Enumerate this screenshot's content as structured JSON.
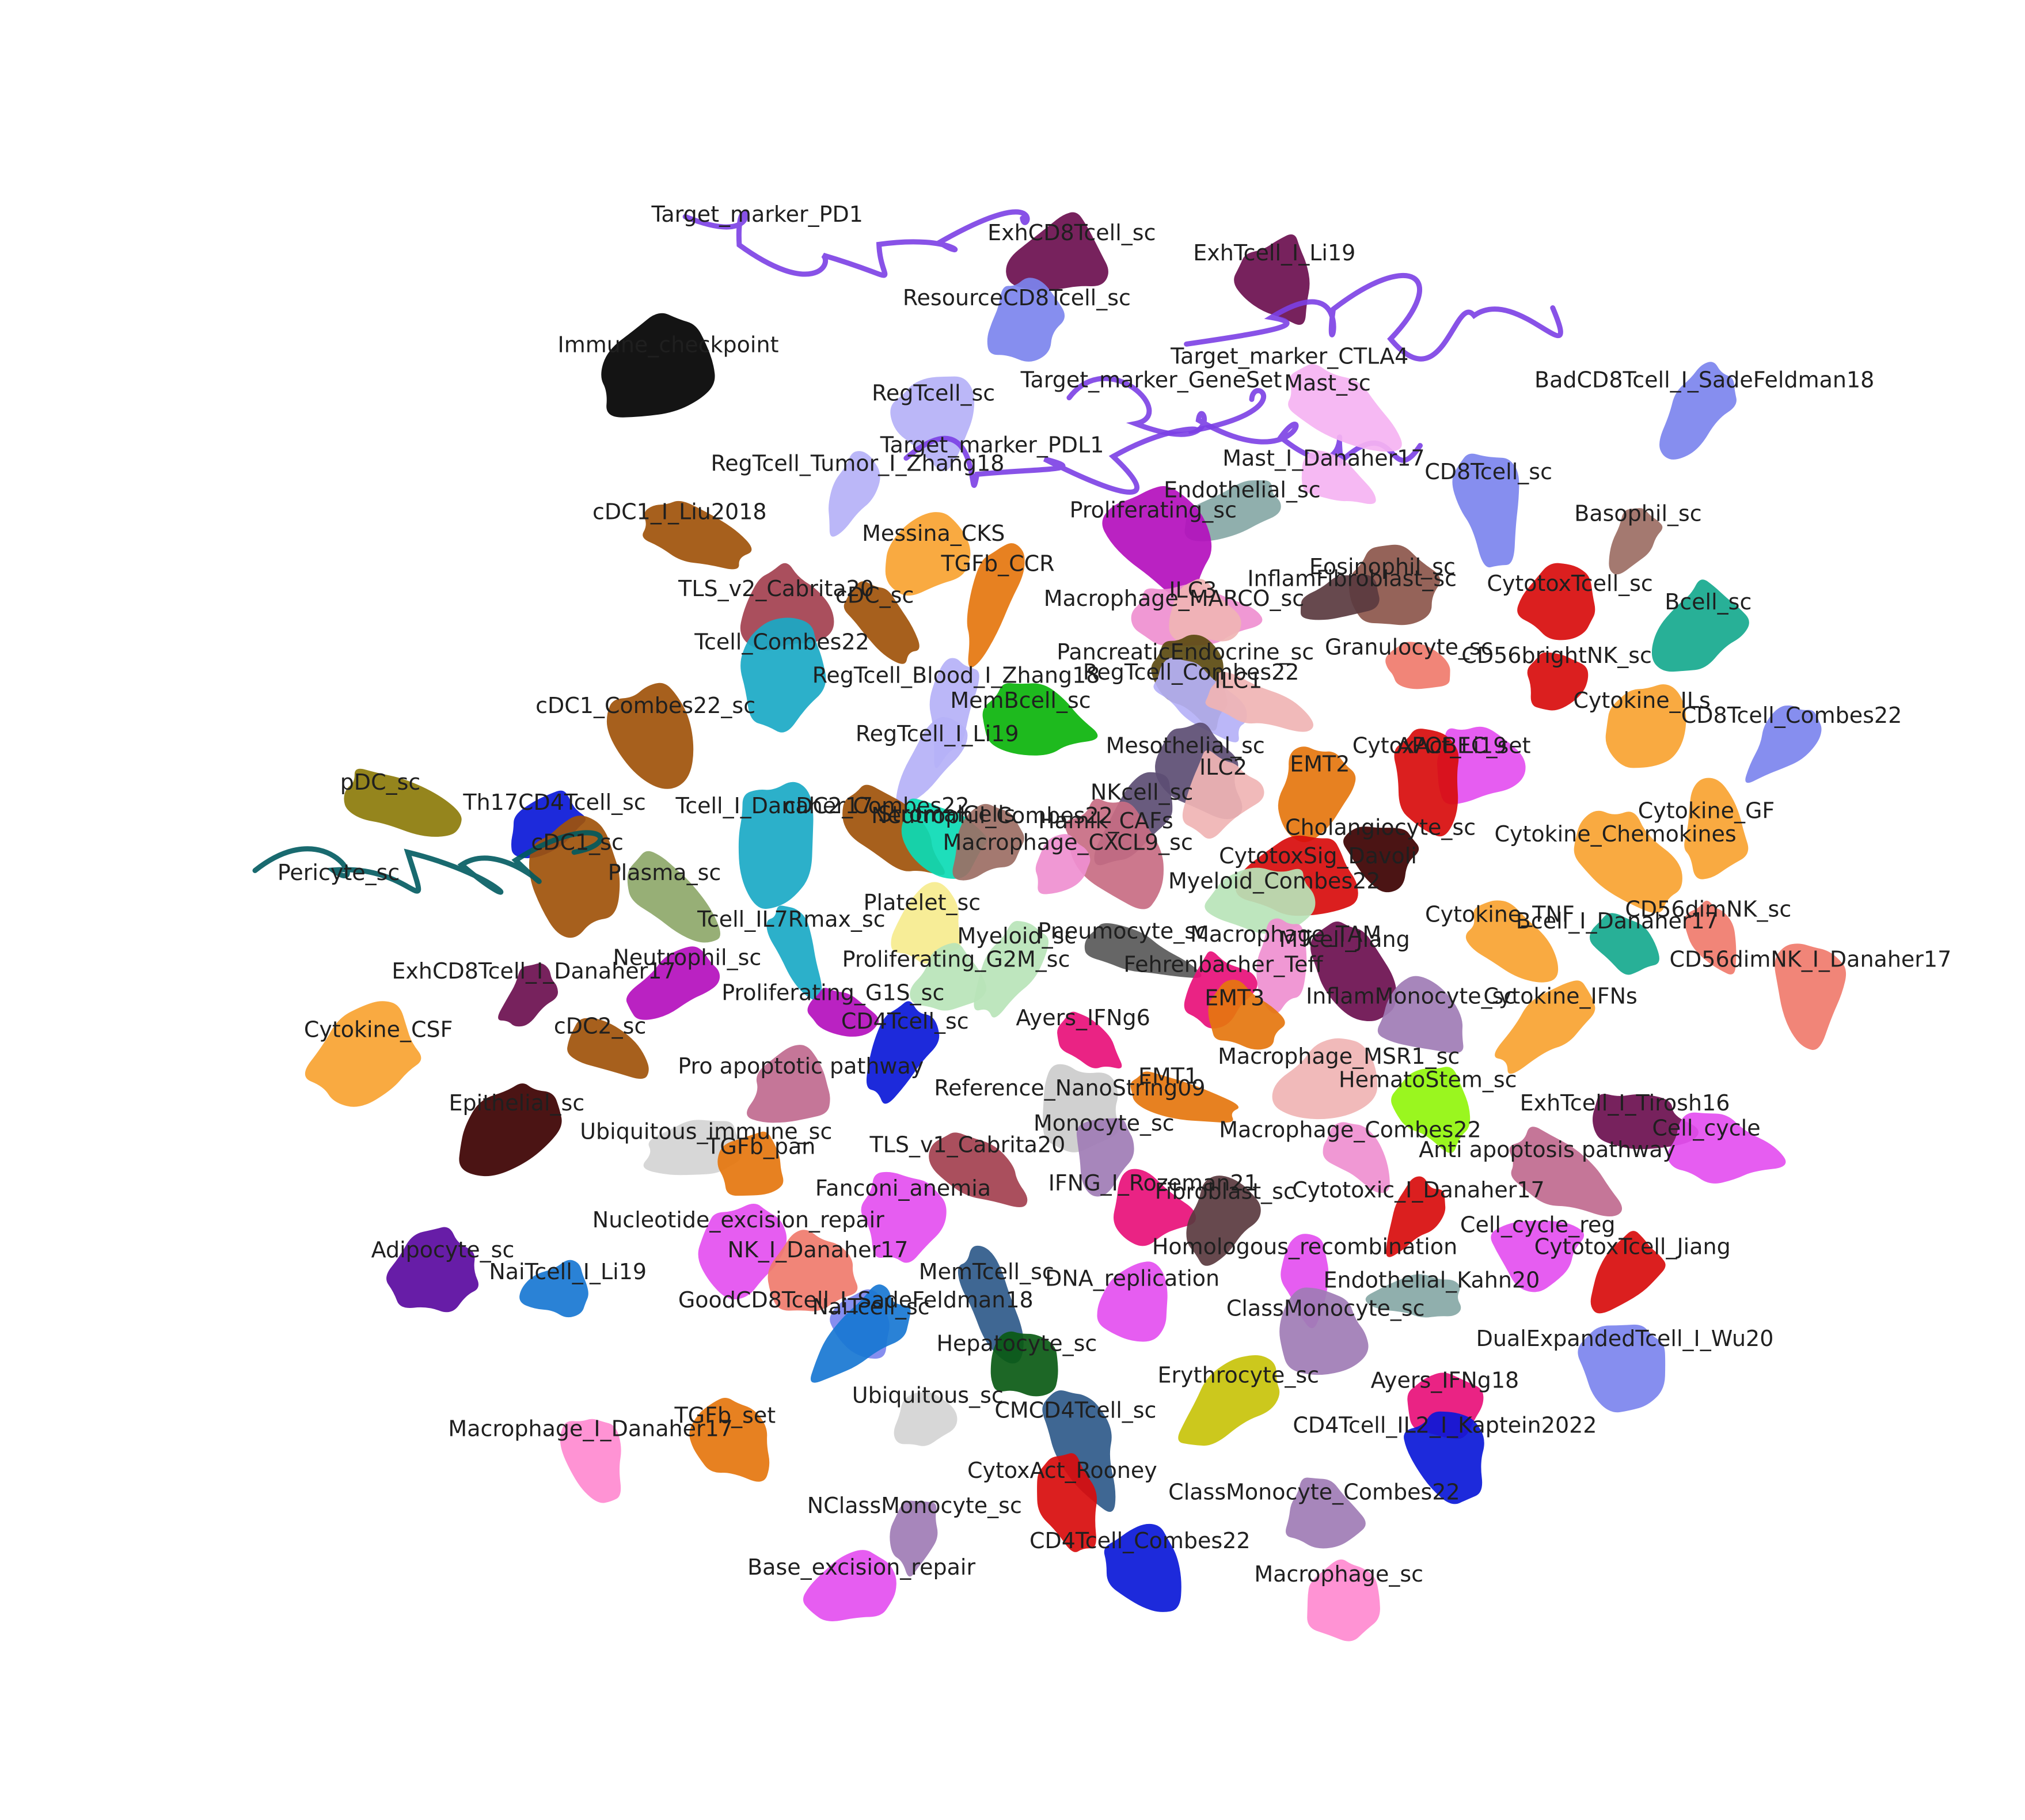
{
  "chart_data": {
    "type": "scatter",
    "title": "",
    "xlabel": "",
    "ylabel": "",
    "axes_visible": false,
    "grid": false,
    "legend": "none",
    "note_on_units": "UMAP-style embedding; coordinates are arbitrary embedding units (x: 0–100 left→right, y: 0–100 bottom→top) estimated from label positions",
    "clusters": [
      {
        "label": "Target_marker_PD1",
        "color": "#7b3fe4",
        "x": 34.2,
        "y": 91.2,
        "shape": "worm"
      },
      {
        "label": "ExhCD8Tcell_sc",
        "color": "#6b0f4f",
        "x": 50.8,
        "y": 90.1,
        "shape": "blob"
      },
      {
        "label": "ExhTcell_I_Li19",
        "color": "#6b0f4f",
        "x": 61.5,
        "y": 88.9,
        "shape": "blob"
      },
      {
        "label": "ResourceCD8Tcell_sc",
        "color": "#7c84ee",
        "x": 47.9,
        "y": 86.2,
        "shape": "blob"
      },
      {
        "label": "Immune_checkpoint",
        "color": "#000000",
        "x": 29.5,
        "y": 83.4,
        "shape": "blob"
      },
      {
        "label": "Target_marker_CTLA4",
        "color": "#7b3fe4",
        "x": 62.3,
        "y": 82.7,
        "shape": "worm"
      },
      {
        "label": "RegTcell_sc",
        "color": "#b5b1f7",
        "x": 43.5,
        "y": 80.5,
        "shape": "blob"
      },
      {
        "label": "Target_marker_GeneSet",
        "color": "#7b3fe4",
        "x": 55.0,
        "y": 81.3,
        "shape": "worm"
      },
      {
        "label": "Mast_sc",
        "color": "#f5b3f2",
        "x": 64.3,
        "y": 81.1,
        "shape": "blob"
      },
      {
        "label": "BadCD8Tcell_I_SadeFeldman18",
        "color": "#7c84ee",
        "x": 84.2,
        "y": 81.3,
        "shape": "blob"
      },
      {
        "label": "Target_marker_PDL1",
        "color": "#7b3fe4",
        "x": 46.6,
        "y": 77.4,
        "shape": "worm"
      },
      {
        "label": "RegTcell_Tumor_I_Zhang18",
        "color": "#b5b1f7",
        "x": 39.5,
        "y": 76.3,
        "shape": "blob"
      },
      {
        "label": "Mast_I_Danaher17",
        "color": "#f5b3f2",
        "x": 64.1,
        "y": 76.6,
        "shape": "blob"
      },
      {
        "label": "CD8Tcell_sc",
        "color": "#7c84ee",
        "x": 72.8,
        "y": 75.8,
        "shape": "blob"
      },
      {
        "label": "cDC1_I_Liu2018",
        "color": "#a0520a",
        "x": 30.1,
        "y": 73.4,
        "shape": "blob"
      },
      {
        "label": "Endothelial_sc",
        "color": "#87a8a6",
        "x": 59.8,
        "y": 74.7,
        "shape": "blob"
      },
      {
        "label": "Proliferating_sc",
        "color": "#b40fbd",
        "x": 55.1,
        "y": 73.5,
        "shape": "blob"
      },
      {
        "label": "Basophil_sc",
        "color": "#9c6e64",
        "x": 80.7,
        "y": 73.3,
        "shape": "blob"
      },
      {
        "label": "Messina_CKS",
        "color": "#f9a331",
        "x": 43.5,
        "y": 72.1,
        "shape": "blob"
      },
      {
        "label": "TGFb_CCR",
        "color": "#e5760e",
        "x": 46.9,
        "y": 70.3,
        "shape": "blob"
      },
      {
        "label": "Eosinophil_sc",
        "color": "#8c564b",
        "x": 67.2,
        "y": 70.1,
        "shape": "blob"
      },
      {
        "label": "InflamFibroblast_sc",
        "color": "#5a3a3f",
        "x": 65.6,
        "y": 69.4,
        "shape": "blob"
      },
      {
        "label": "CytotoxTcell_sc",
        "color": "#d80c0c",
        "x": 77.1,
        "y": 69.1,
        "shape": "blob"
      },
      {
        "label": "TLS_v2_Cabrita20",
        "color": "#a3404f",
        "x": 35.2,
        "y": 68.8,
        "shape": "blob"
      },
      {
        "label": "cDC_sc",
        "color": "#a0520a",
        "x": 40.4,
        "y": 68.4,
        "shape": "blob"
      },
      {
        "label": "Macrophage_MARCO_sc",
        "color": "#ef8fd0",
        "x": 56.2,
        "y": 68.2,
        "shape": "blob"
      },
      {
        "label": "ILC3",
        "color": "#f0b4b4",
        "x": 57.2,
        "y": 68.7,
        "shape": "blob"
      },
      {
        "label": "Bcell_sc",
        "color": "#16a98e",
        "x": 84.4,
        "y": 68.0,
        "shape": "blob"
      },
      {
        "label": "Tcell_Combes22",
        "color": "#1aa9c6",
        "x": 35.5,
        "y": 65.6,
        "shape": "blob"
      },
      {
        "label": "PancreaticEndocrine_sc",
        "color": "#5b4a10",
        "x": 56.8,
        "y": 65.0,
        "shape": "blob"
      },
      {
        "label": "Granulocyte_sc",
        "color": "#f07b6d",
        "x": 68.6,
        "y": 65.3,
        "shape": "blob"
      },
      {
        "label": "CD56brightNK_sc",
        "color": "#d80c0c",
        "x": 76.4,
        "y": 64.8,
        "shape": "blob"
      },
      {
        "label": "RegTcell_Blood_I_Zhang18",
        "color": "#b5b1f7",
        "x": 44.7,
        "y": 63.6,
        "shape": "blob"
      },
      {
        "label": "RegTcell_Combes22",
        "color": "#b5b1f7",
        "x": 57.1,
        "y": 63.8,
        "shape": "blob"
      },
      {
        "label": "ILC1",
        "color": "#f0b4b4",
        "x": 59.6,
        "y": 63.3,
        "shape": "blob"
      },
      {
        "label": "MemBcell_sc",
        "color": "#0bb40b",
        "x": 48.1,
        "y": 62.1,
        "shape": "blob"
      },
      {
        "label": "cDC1_Combes22_sc",
        "color": "#a0520a",
        "x": 28.3,
        "y": 61.8,
        "shape": "blob"
      },
      {
        "label": "Cytokine_ILs",
        "color": "#f9a331",
        "x": 80.9,
        "y": 62.1,
        "shape": "blob"
      },
      {
        "label": "CD8Tcell_Combes22",
        "color": "#7c84ee",
        "x": 88.8,
        "y": 61.2,
        "shape": "blob"
      },
      {
        "label": "pDC_sc",
        "color": "#8c7b0a",
        "x": 14.3,
        "y": 57.2,
        "shape": "blob"
      },
      {
        "label": "RegTcell_I_Li19",
        "color": "#b5b1f7",
        "x": 43.7,
        "y": 60.1,
        "shape": "blob"
      },
      {
        "label": "Mesothelial_sc",
        "color": "#5c4d73",
        "x": 56.8,
        "y": 59.4,
        "shape": "blob"
      },
      {
        "label": "APOBEC_set",
        "color": "#e44ff0",
        "x": 71.5,
        "y": 59.4,
        "shape": "blob"
      },
      {
        "label": "CytoxAct_Li19",
        "color": "#d80c0c",
        "x": 69.7,
        "y": 59.4,
        "shape": "blob"
      },
      {
        "label": "ILC2",
        "color": "#f0b4b4",
        "x": 58.8,
        "y": 58.1,
        "shape": "blob"
      },
      {
        "label": "EMT2",
        "color": "#e5760e",
        "x": 63.9,
        "y": 58.3,
        "shape": "blob"
      },
      {
        "label": "Th17CD4Tcell_sc",
        "color": "#0a18d8",
        "x": 23.5,
        "y": 56.0,
        "shape": "blob"
      },
      {
        "label": "Tcell_I_Danaher17",
        "color": "#1aa9c6",
        "x": 35.1,
        "y": 55.8,
        "shape": "blob"
      },
      {
        "label": "cDC2_Combes22",
        "color": "#a0520a",
        "x": 40.5,
        "y": 55.8,
        "shape": "blob"
      },
      {
        "label": "StromalCells",
        "color": "#0bdbb5",
        "x": 44.2,
        "y": 55.3,
        "shape": "blob"
      },
      {
        "label": "NKcell_sc",
        "color": "#5c4d73",
        "x": 54.5,
        "y": 56.6,
        "shape": "blob"
      },
      {
        "label": "Neutrophil_Combes22",
        "color": "#9c6e64",
        "x": 46.6,
        "y": 55.2,
        "shape": "blob"
      },
      {
        "label": "Cytokine_GF",
        "color": "#f9a331",
        "x": 84.3,
        "y": 55.5,
        "shape": "blob"
      },
      {
        "label": "Hamik_CAFs",
        "color": "#c86c83",
        "x": 52.6,
        "y": 54.9,
        "shape": "blob"
      },
      {
        "label": "Cholangiocyte_sc",
        "color": "#3c0000",
        "x": 67.1,
        "y": 54.5,
        "shape": "blob"
      },
      {
        "label": "Cytokine_Chemokines",
        "color": "#f9a331",
        "x": 79.5,
        "y": 54.1,
        "shape": "blob"
      },
      {
        "label": "cDC1_sc",
        "color": "#a0520a",
        "x": 24.7,
        "y": 53.6,
        "shape": "blob"
      },
      {
        "label": "Macrophage_CXCL9_sc",
        "color": "#ef8fd0",
        "x": 50.6,
        "y": 53.6,
        "shape": "blob"
      },
      {
        "label": "CytotoxSig_Davoli",
        "color": "#d80c0c",
        "x": 63.8,
        "y": 52.8,
        "shape": "blob"
      },
      {
        "label": "Pericyte_sc",
        "color": "#005a5f",
        "x": 12.1,
        "y": 51.8,
        "shape": "worm"
      },
      {
        "label": "Plasma_sc",
        "color": "#8ea86a",
        "x": 29.3,
        "y": 51.8,
        "shape": "blob"
      },
      {
        "label": "Myeloid_Combes22",
        "color": "#b9e4b9",
        "x": 61.5,
        "y": 51.3,
        "shape": "blob"
      },
      {
        "label": "Platelet_sc",
        "color": "#f6ec8e",
        "x": 42.9,
        "y": 50.0,
        "shape": "blob"
      },
      {
        "label": "Tcell_IL7Rmax_sc",
        "color": "#1aa9c6",
        "x": 36.0,
        "y": 49.0,
        "shape": "blob"
      },
      {
        "label": "CD56dimNK_sc",
        "color": "#f07b6d",
        "x": 84.4,
        "y": 49.6,
        "shape": "blob"
      },
      {
        "label": "Cytokine_TNF",
        "color": "#f9a331",
        "x": 73.4,
        "y": 49.3,
        "shape": "blob"
      },
      {
        "label": "Bcell_I_Danaher17",
        "color": "#16a98e",
        "x": 79.6,
        "y": 48.9,
        "shape": "blob"
      },
      {
        "label": "Myeloid_sc",
        "color": "#b9e4b9",
        "x": 47.9,
        "y": 48.0,
        "shape": "blob"
      },
      {
        "label": "Pneumocyte_sc",
        "color": "#595959",
        "x": 53.5,
        "y": 48.3,
        "shape": "blob"
      },
      {
        "label": "Macrophage_TAM",
        "color": "#ef8fd0",
        "x": 62.1,
        "y": 48.1,
        "shape": "blob"
      },
      {
        "label": "MTcell_Jiang",
        "color": "#6b0f4f",
        "x": 65.2,
        "y": 47.8,
        "shape": "blob"
      },
      {
        "label": "CD56dimNK_I_Danaher17",
        "color": "#f07b6d",
        "x": 89.8,
        "y": 46.6,
        "shape": "blob"
      },
      {
        "label": "Proliferating_G2M_sc",
        "color": "#b9e4b9",
        "x": 44.7,
        "y": 46.6,
        "shape": "blob"
      },
      {
        "label": "Neutrophil_sc",
        "color": "#b40fbd",
        "x": 30.5,
        "y": 46.7,
        "shape": "blob"
      },
      {
        "label": "Fehrenbacher_Teff",
        "color": "#e8107a",
        "x": 58.8,
        "y": 46.3,
        "shape": "blob"
      },
      {
        "label": "ExhCD8Tcell_I_Danaher17",
        "color": "#6b0f4f",
        "x": 22.4,
        "y": 45.9,
        "shape": "blob"
      },
      {
        "label": "Proliferating_G1S_sc",
        "color": "#b40fbd",
        "x": 38.2,
        "y": 44.6,
        "shape": "blob"
      },
      {
        "label": "Ayers_IFNg6",
        "color": "#e8107a",
        "x": 51.4,
        "y": 43.1,
        "shape": "blob"
      },
      {
        "label": "CD4Tcell_sc",
        "color": "#0a18d8",
        "x": 42.0,
        "y": 42.9,
        "shape": "blob"
      },
      {
        "label": "EMT3",
        "color": "#e5760e",
        "x": 59.4,
        "y": 44.3,
        "shape": "blob"
      },
      {
        "label": "InflamMonocyte_sc",
        "color": "#a07cb5",
        "x": 68.7,
        "y": 44.4,
        "shape": "blob"
      },
      {
        "label": "Cytokine_IFNs",
        "color": "#f9a331",
        "x": 76.6,
        "y": 44.4,
        "shape": "blob"
      },
      {
        "label": "Cytokine_CSF",
        "color": "#f9a331",
        "x": 14.2,
        "y": 42.4,
        "shape": "blob"
      },
      {
        "label": "cDC2_sc",
        "color": "#a0520a",
        "x": 25.9,
        "y": 42.6,
        "shape": "blob"
      },
      {
        "label": "Macrophage_MSR1_sc",
        "color": "#f0b4b4",
        "x": 64.9,
        "y": 40.8,
        "shape": "blob"
      },
      {
        "label": "Pro apoptotic pathway",
        "color": "#c06a8f",
        "x": 36.5,
        "y": 40.2,
        "shape": "blob"
      },
      {
        "label": "EMT1",
        "color": "#e5760e",
        "x": 55.9,
        "y": 39.6,
        "shape": "blob"
      },
      {
        "label": "HematoStem_sc",
        "color": "#91f50c",
        "x": 69.6,
        "y": 39.4,
        "shape": "blob"
      },
      {
        "label": "Reference_NanoString09",
        "color": "#cccccc",
        "x": 50.7,
        "y": 38.9,
        "shape": "blob"
      },
      {
        "label": "Epithelial_sc",
        "color": "#3c0000",
        "x": 21.5,
        "y": 38.0,
        "shape": "blob"
      },
      {
        "label": "ExhTcell_I_Tirosh16",
        "color": "#6b0f4f",
        "x": 80.0,
        "y": 38.0,
        "shape": "blob"
      },
      {
        "label": "Monocyte_sc",
        "color": "#a07cb5",
        "x": 52.5,
        "y": 36.8,
        "shape": "blob"
      },
      {
        "label": "Cell_cycle",
        "color": "#e44ff0",
        "x": 84.3,
        "y": 36.5,
        "shape": "blob"
      },
      {
        "label": "Macrophage_Combes22",
        "color": "#ef8fd0",
        "x": 65.5,
        "y": 36.4,
        "shape": "blob"
      },
      {
        "label": "Ubiquitous_immune_sc",
        "color": "#d4d4d4",
        "x": 31.5,
        "y": 36.3,
        "shape": "blob"
      },
      {
        "label": "TGFb_pan",
        "color": "#e5760e",
        "x": 34.4,
        "y": 35.4,
        "shape": "blob"
      },
      {
        "label": "TLS_v1_Cabrita20",
        "color": "#a3404f",
        "x": 45.3,
        "y": 35.5,
        "shape": "blob"
      },
      {
        "label": "Anti apoptosis pathway",
        "color": "#c06a8f",
        "x": 75.9,
        "y": 35.2,
        "shape": "blob"
      },
      {
        "label": "IFNG_I_Rozeman21",
        "color": "#e8107a",
        "x": 55.1,
        "y": 33.2,
        "shape": "blob"
      },
      {
        "label": "Fibroblast_sc",
        "color": "#5a3a3f",
        "x": 58.9,
        "y": 32.7,
        "shape": "blob"
      },
      {
        "label": "Cytotoxic_I_Danaher17",
        "color": "#d80c0c",
        "x": 69.1,
        "y": 32.8,
        "shape": "blob"
      },
      {
        "label": "Fanconi_anemia",
        "color": "#e44ff0",
        "x": 41.9,
        "y": 32.9,
        "shape": "blob"
      },
      {
        "label": "Nucleotide_excision_repair",
        "color": "#e44ff0",
        "x": 33.2,
        "y": 31.0,
        "shape": "blob"
      },
      {
        "label": "Cell_cycle_reg",
        "color": "#e44ff0",
        "x": 75.4,
        "y": 30.7,
        "shape": "blob"
      },
      {
        "label": "Adipocyte_sc",
        "color": "#5a0aa0",
        "x": 17.6,
        "y": 29.2,
        "shape": "blob"
      },
      {
        "label": "NK_I_Danaher17",
        "color": "#f07b6d",
        "x": 37.4,
        "y": 29.2,
        "shape": "blob"
      },
      {
        "label": "Homologous_recombination",
        "color": "#e44ff0",
        "x": 63.1,
        "y": 29.4,
        "shape": "blob"
      },
      {
        "label": "CytotoxTcell_Jiang",
        "color": "#d80c0c",
        "x": 80.4,
        "y": 29.4,
        "shape": "blob"
      },
      {
        "label": "NaiTcell_I_Li19",
        "color": "#1877d2",
        "x": 24.2,
        "y": 27.9,
        "shape": "blob"
      },
      {
        "label": "MemTcell_sc",
        "color": "#2f5a8a",
        "x": 46.3,
        "y": 27.9,
        "shape": "blob"
      },
      {
        "label": "DNA_replication",
        "color": "#e44ff0",
        "x": 54.0,
        "y": 27.5,
        "shape": "blob"
      },
      {
        "label": "Endothelial_Kahn20",
        "color": "#87a8a6",
        "x": 69.8,
        "y": 27.4,
        "shape": "blob"
      },
      {
        "label": "GoodCD8Tcell_I_SadeFeldman18",
        "color": "#7c84ee",
        "x": 39.4,
        "y": 26.2,
        "shape": "blob"
      },
      {
        "label": "NaiTcell_sc",
        "color": "#1877d2",
        "x": 40.2,
        "y": 25.8,
        "shape": "blob"
      },
      {
        "label": "ClassMonocyte_sc",
        "color": "#a07cb5",
        "x": 64.2,
        "y": 25.7,
        "shape": "blob"
      },
      {
        "label": "Hepatocyte_sc",
        "color": "#0a5a14",
        "x": 47.9,
        "y": 23.6,
        "shape": "blob"
      },
      {
        "label": "DualExpandedTcell_I_Wu20",
        "color": "#7c84ee",
        "x": 80.0,
        "y": 23.9,
        "shape": "blob"
      },
      {
        "label": "Erythrocyte_sc",
        "color": "#c8c30a",
        "x": 59.6,
        "y": 21.7,
        "shape": "blob"
      },
      {
        "label": "Ayers_IFNg18",
        "color": "#e8107a",
        "x": 70.5,
        "y": 21.4,
        "shape": "blob"
      },
      {
        "label": "Ubiquitous_sc",
        "color": "#d4d4d4",
        "x": 43.2,
        "y": 20.5,
        "shape": "blob"
      },
      {
        "label": "TGFb_set",
        "color": "#e5760e",
        "x": 32.5,
        "y": 19.3,
        "shape": "blob"
      },
      {
        "label": "CMCD4Tcell_sc",
        "color": "#2f5a8a",
        "x": 51.0,
        "y": 19.6,
        "shape": "blob"
      },
      {
        "label": "CD4Tcell_IL2_I_Kaptein2022",
        "color": "#0a18d8",
        "x": 70.5,
        "y": 18.7,
        "shape": "blob"
      },
      {
        "label": "Macrophage_I_Danaher17",
        "color": "#ff8ad0",
        "x": 25.4,
        "y": 18.5,
        "shape": "blob"
      },
      {
        "label": "CytoxAct_Rooney",
        "color": "#d80c0c",
        "x": 50.3,
        "y": 16.0,
        "shape": "blob"
      },
      {
        "label": "ClassMonocyte_Combes22",
        "color": "#a07cb5",
        "x": 63.6,
        "y": 14.7,
        "shape": "blob"
      },
      {
        "label": "NClassMonocyte_sc",
        "color": "#a07cb5",
        "x": 42.5,
        "y": 13.9,
        "shape": "blob"
      },
      {
        "label": "CD4Tcell_Combes22",
        "color": "#0a18d8",
        "x": 54.4,
        "y": 11.8,
        "shape": "blob"
      },
      {
        "label": "Macrophage_sc",
        "color": "#ff8ad0",
        "x": 64.9,
        "y": 9.8,
        "shape": "blob"
      },
      {
        "label": "Base_excision_repair",
        "color": "#e44ff0",
        "x": 39.7,
        "y": 10.2,
        "shape": "blob"
      }
    ]
  }
}
